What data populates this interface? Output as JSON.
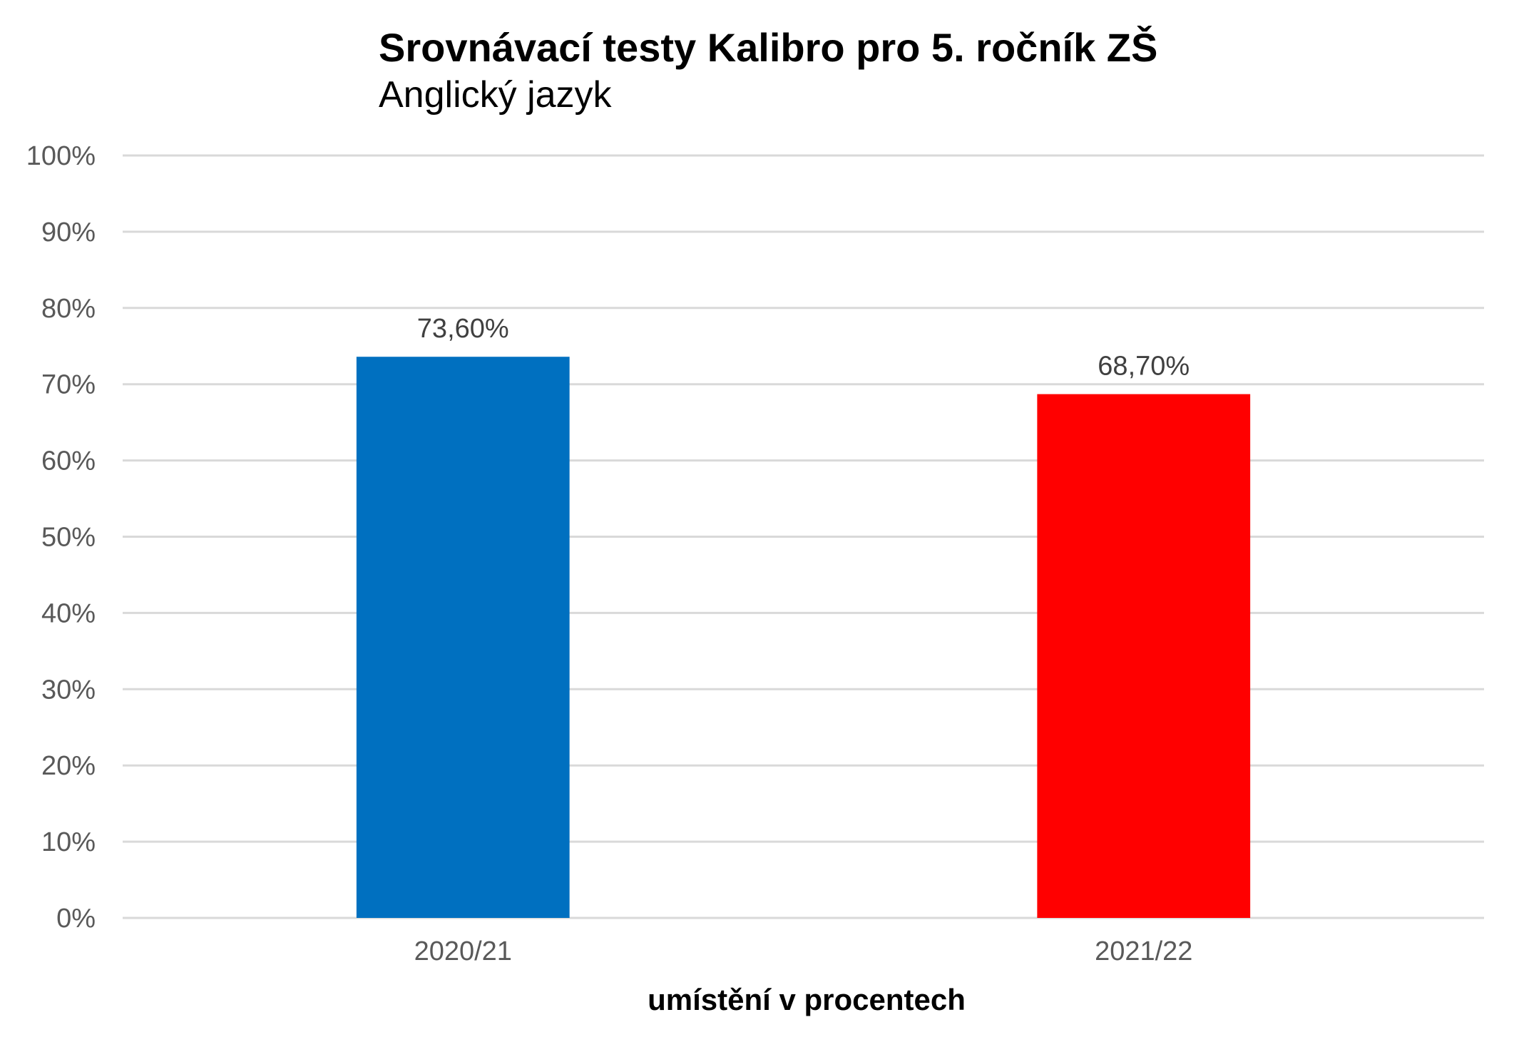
{
  "chart_data": {
    "type": "bar",
    "title": "Srovnávací testy Kalibro pro 5. ročník ZŠ",
    "subtitle": "Anglický jazyk",
    "xlabel": "umístění v procentech",
    "ylabel": "",
    "categories": [
      "2020/21",
      "2021/22"
    ],
    "values": [
      73.6,
      68.7
    ],
    "data_labels": [
      "73,60%",
      "68,70%"
    ],
    "bar_colors": [
      "#0070C0",
      "#FF0000"
    ],
    "ylim": [
      0,
      100
    ],
    "yticks": [
      0,
      10,
      20,
      30,
      40,
      50,
      60,
      70,
      80,
      90,
      100
    ],
    "ytick_labels": [
      "0%",
      "10%",
      "20%",
      "30%",
      "40%",
      "50%",
      "60%",
      "70%",
      "80%",
      "90%",
      "100%"
    ],
    "grid": true,
    "legend": "none"
  }
}
